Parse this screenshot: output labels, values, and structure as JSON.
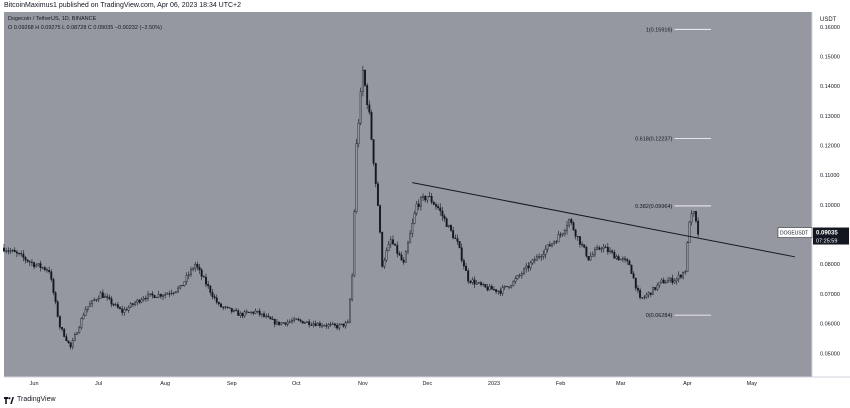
{
  "header": {
    "publish_line": "BitcoinMaximus1 published on TradingView.com, Apr 06, 2023 18:34 UTC+2"
  },
  "footer": {
    "brand": "TradingView"
  },
  "colors": {
    "plot_bg": "#9598a1",
    "candle": "#131722",
    "trendline": "#131722",
    "fib": "#ffffff",
    "price_label_bg": "#131722"
  },
  "chart_data": {
    "type": "candlestick",
    "symbol_line": "Dogecoin / TetherUS, 1D, BINANCE",
    "ohlc_line": "O 0.09268  H 0.09275  L 0.08728  C 0.09035  −0.00232 (−2.50%)",
    "y_axis_unit": "USDT",
    "ylim": [
      0.042,
      0.165
    ],
    "y_ticks": [
      "0.16000",
      "0.15000",
      "0.14000",
      "0.13000",
      "0.12000",
      "0.11000",
      "0.10000",
      "0.09000",
      "0.08000",
      "0.07000",
      "0.06000",
      "0.05000"
    ],
    "x_ticks": [
      "Jun",
      "Jul",
      "Aug",
      "Sep",
      "Oct",
      "Nov",
      "Dec",
      "2023",
      "Feb",
      "Mar",
      "Apr",
      "May"
    ],
    "x_range": [
      "2022-05-18",
      "2023-05-29"
    ],
    "last_price": {
      "label": "DOGEUSDT",
      "value": "0.09035",
      "countdown": "07:25:59"
    },
    "fib_levels": [
      {
        "label": "1(0.15916)",
        "value": 0.15916
      },
      {
        "label": "0.618(0.12237)",
        "value": 0.12237
      },
      {
        "label": "0.382(0.09964)",
        "value": 0.09964
      },
      {
        "label": "0(0.06284)",
        "value": 0.06284
      }
    ],
    "fib_x_range": [
      "2023-03-12",
      "2023-04-12"
    ],
    "trendline": {
      "from": {
        "date": "2022-11-24",
        "value": 0.1075
      },
      "to": {
        "date": "2023-05-21",
        "value": 0.0825
      }
    },
    "close_path": [
      [
        "2022-05-18",
        0.0855
      ],
      [
        "2022-05-25",
        0.083
      ],
      [
        "2022-06-01",
        0.08
      ],
      [
        "2022-06-08",
        0.078
      ],
      [
        "2022-06-13",
        0.059
      ],
      [
        "2022-06-18",
        0.052
      ],
      [
        "2022-06-25",
        0.065
      ],
      [
        "2022-07-02",
        0.07
      ],
      [
        "2022-07-12",
        0.064
      ],
      [
        "2022-07-22",
        0.069
      ],
      [
        "2022-08-01",
        0.07
      ],
      [
        "2022-08-08",
        0.072
      ],
      [
        "2022-08-15",
        0.08
      ],
      [
        "2022-08-18",
        0.076
      ],
      [
        "2022-08-26",
        0.066
      ],
      [
        "2022-09-05",
        0.063
      ],
      [
        "2022-09-12",
        0.064
      ],
      [
        "2022-09-22",
        0.06
      ],
      [
        "2022-10-01",
        0.061
      ],
      [
        "2022-10-10",
        0.06
      ],
      [
        "2022-10-20",
        0.059
      ],
      [
        "2022-10-25",
        0.06
      ],
      [
        "2022-10-27",
        0.076
      ],
      [
        "2022-10-29",
        0.12
      ],
      [
        "2022-11-01",
        0.145
      ],
      [
        "2022-11-04",
        0.13
      ],
      [
        "2022-11-08",
        0.1
      ],
      [
        "2022-11-10",
        0.08
      ],
      [
        "2022-11-14",
        0.088
      ],
      [
        "2022-11-20",
        0.08
      ],
      [
        "2022-11-26",
        0.1
      ],
      [
        "2022-12-01",
        0.103
      ],
      [
        "2022-12-06",
        0.099
      ],
      [
        "2022-12-15",
        0.087
      ],
      [
        "2022-12-20",
        0.075
      ],
      [
        "2022-12-28",
        0.072
      ],
      [
        "2023-01-04",
        0.071
      ],
      [
        "2023-01-10",
        0.074
      ],
      [
        "2023-01-18",
        0.08
      ],
      [
        "2023-01-25",
        0.085
      ],
      [
        "2023-02-01",
        0.09
      ],
      [
        "2023-02-05",
        0.095
      ],
      [
        "2023-02-09",
        0.089
      ],
      [
        "2023-02-14",
        0.082
      ],
      [
        "2023-02-20",
        0.086
      ],
      [
        "2023-02-26",
        0.083
      ],
      [
        "2023-03-05",
        0.08
      ],
      [
        "2023-03-10",
        0.068
      ],
      [
        "2023-03-14",
        0.07
      ],
      [
        "2023-03-20",
        0.074
      ],
      [
        "2023-03-27",
        0.075
      ],
      [
        "2023-03-31",
        0.078
      ],
      [
        "2023-04-02",
        0.095
      ],
      [
        "2023-04-04",
        0.097
      ],
      [
        "2023-04-06",
        0.0904
      ]
    ],
    "end_date": "2023-04-06"
  }
}
